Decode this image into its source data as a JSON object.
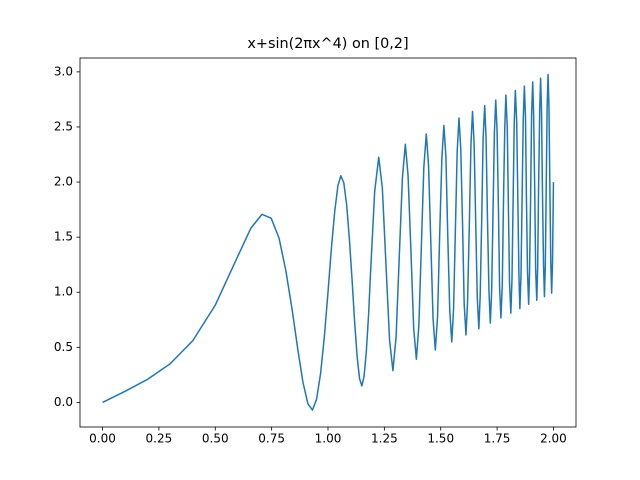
{
  "chart_data": {
    "type": "line",
    "title": "x+sin(2πx^4) on [0,2]",
    "color": "#1f77b4",
    "x": [
      0,
      0.1,
      0.2,
      0.3,
      0.4,
      0.5,
      0.6,
      0.658,
      0.707,
      0.748,
      0.783,
      0.813,
      0.841,
      0.866,
      0.889,
      0.911,
      0.931,
      0.949,
      0.967,
      0.984,
      1,
      1.015,
      1.03,
      1.044,
      1.057,
      1.07,
      1.083,
      1.095,
      1.107,
      1.118,
      1.129,
      1.14,
      1.15,
      1.16,
      1.17,
      1.18,
      1.189,
      1.207,
      1.225,
      1.241,
      1.257,
      1.273,
      1.288,
      1.302,
      1.316,
      1.33,
      1.343,
      1.355,
      1.368,
      1.38,
      1.392,
      1.403,
      1.414,
      1.425,
      1.436,
      1.446,
      1.456,
      1.466,
      1.476,
      1.486,
      1.495,
      1.505,
      1.514,
      1.523,
      1.531,
      1.54,
      1.549,
      1.557,
      1.565,
      1.573,
      1.581,
      1.589,
      1.597,
      1.604,
      1.612,
      1.619,
      1.627,
      1.634,
      1.641,
      1.648,
      1.655,
      1.662,
      1.669,
      1.675,
      1.682,
      1.688,
      1.695,
      1.701,
      1.707,
      1.714,
      1.72,
      1.726,
      1.732,
      1.738,
      1.744,
      1.75,
      1.756,
      1.761,
      1.767,
      1.773,
      1.778,
      1.784,
      1.789,
      1.795,
      1.8,
      1.805,
      1.811,
      1.816,
      1.821,
      1.826,
      1.831,
      1.837,
      1.842,
      1.847,
      1.851,
      1.856,
      1.861,
      1.866,
      1.871,
      1.876,
      1.88,
      1.885,
      1.89,
      1.894,
      1.899,
      1.903,
      1.908,
      1.912,
      1.917,
      1.921,
      1.926,
      1.93,
      1.934,
      1.939,
      1.943,
      1.947,
      1.951,
      1.956,
      1.96,
      1.964,
      1.968,
      1.972,
      1.976,
      1.98,
      1.984,
      1.988,
      1.992,
      1.996,
      2
    ],
    "y": [
      0,
      0.101,
      0.21,
      0.351,
      0.56,
      0.883,
      1.327,
      1.582,
      1.707,
      1.672,
      1.49,
      1.196,
      0.841,
      0.483,
      0.182,
      -0.013,
      -0.069,
      0.026,
      0.26,
      0.601,
      1,
      1.398,
      1.737,
      1.968,
      2.057,
      1.994,
      1.79,
      1.478,
      1.107,
      0.735,
      0.422,
      0.216,
      0.15,
      0.236,
      0.463,
      0.797,
      1.189,
      1.914,
      2.225,
      1.949,
      1.257,
      0.566,
      0.288,
      0.595,
      1.316,
      2.037,
      2.343,
      2.062,
      1.368,
      0.673,
      0.392,
      0.696,
      1.414,
      2.132,
      2.436,
      2.153,
      1.456,
      0.759,
      0.476,
      0.779,
      1.495,
      2.212,
      2.514,
      2.23,
      1.531,
      0.833,
      0.549,
      0.85,
      1.565,
      2.28,
      2.581,
      2.296,
      1.597,
      0.897,
      0.612,
      0.912,
      1.627,
      2.341,
      2.641,
      2.355,
      1.655,
      0.955,
      0.668,
      0.968,
      1.682,
      2.395,
      2.695,
      2.408,
      1.707,
      1.007,
      0.72,
      1.019,
      1.732,
      2.445,
      2.744,
      2.457,
      1.756,
      1.054,
      0.767,
      1.066,
      1.778,
      2.491,
      2.789,
      2.502,
      1.8,
      1.098,
      0.811,
      1.109,
      1.821,
      2.533,
      2.831,
      2.544,
      1.842,
      1.139,
      0.851,
      1.149,
      1.861,
      2.573,
      2.871,
      2.583,
      1.88,
      1.178,
      0.89,
      1.187,
      1.899,
      2.61,
      2.908,
      2.619,
      1.917,
      1.214,
      0.926,
      1.223,
      1.934,
      2.646,
      2.943,
      2.654,
      1.951,
      1.248,
      0.96,
      1.257,
      1.968,
      2.679,
      2.976,
      2.687,
      1.984,
      1.281,
      0.992,
      1.289,
      2
    ],
    "xlim": [
      -0.1,
      2.1
    ],
    "ylim": [
      -0.223,
      3.126
    ],
    "xticks": [
      {
        "value": 0,
        "label": "0.00"
      },
      {
        "value": 0.25,
        "label": "0.25"
      },
      {
        "value": 0.5,
        "label": "0.50"
      },
      {
        "value": 0.75,
        "label": "0.75"
      },
      {
        "value": 1,
        "label": "1.00"
      },
      {
        "value": 1.25,
        "label": "1.25"
      },
      {
        "value": 1.5,
        "label": "1.50"
      },
      {
        "value": 1.75,
        "label": "1.75"
      },
      {
        "value": 2,
        "label": "2.00"
      }
    ],
    "yticks": [
      {
        "value": 0,
        "label": "0.0"
      },
      {
        "value": 0.5,
        "label": "0.5"
      },
      {
        "value": 1,
        "label": "1.0"
      },
      {
        "value": 1.5,
        "label": "1.5"
      },
      {
        "value": 2,
        "label": "2.0"
      },
      {
        "value": 2.5,
        "label": "2.5"
      },
      {
        "value": 3,
        "label": "3.0"
      }
    ]
  }
}
